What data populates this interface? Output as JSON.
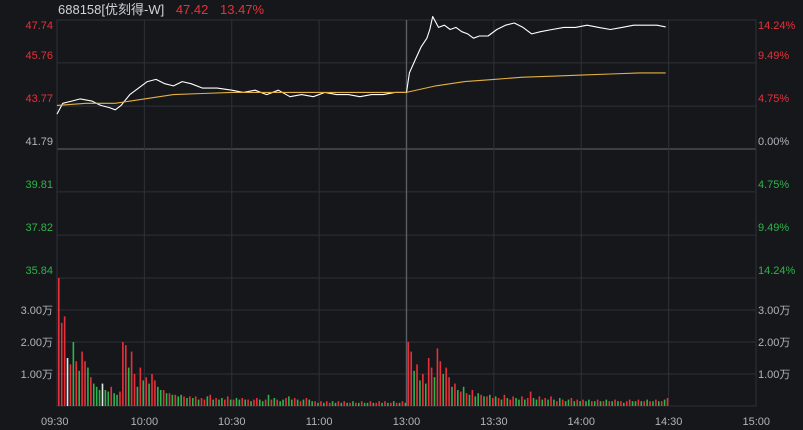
{
  "header": {
    "name": "688158[优刻得-W]",
    "price": "47.42",
    "change_pct": "13.47%"
  },
  "colors": {
    "background": "#16171b",
    "grid": "#2f3138",
    "up": "#e8303a",
    "down": "#2fb34a",
    "flat": "#e6e6e6",
    "price_line": "#ffffff",
    "avg_line": "#e3b142",
    "axis_text": "#b0b4bb"
  },
  "chart_data": {
    "type": "line",
    "price_axis": {
      "labels": [
        "47.74",
        "45.76",
        "43.77",
        "41.79",
        "39.81",
        "37.82",
        "35.84"
      ],
      "values": [
        47.74,
        45.76,
        43.77,
        41.79,
        39.81,
        37.82,
        35.84
      ],
      "prev_close": 41.79
    },
    "pct_axis": {
      "labels": [
        "14.24%",
        "9.49%",
        "4.75%",
        "0.00%",
        "4.75%",
        "9.49%",
        "14.24%"
      ]
    },
    "volume_axis": {
      "labels": [
        "3.00万",
        "2.00万",
        "1.00万"
      ],
      "values": [
        30000,
        20000,
        10000
      ],
      "max": 40000
    },
    "time_axis": {
      "labels": [
        "09:30",
        "10:00",
        "10:30",
        "11:00",
        "13:00",
        "13:30",
        "14:00",
        "14:30",
        "15:00"
      ],
      "minutes": [
        0,
        30,
        60,
        90,
        120,
        150,
        180,
        210,
        240
      ]
    },
    "total_minutes": 240,
    "series": [
      {
        "key": "price",
        "points": [
          [
            0,
            43.4
          ],
          [
            2,
            43.9
          ],
          [
            5,
            44.0
          ],
          [
            8,
            44.1
          ],
          [
            12,
            44.0
          ],
          [
            15,
            43.8
          ],
          [
            18,
            43.7
          ],
          [
            20,
            43.6
          ],
          [
            22,
            43.8
          ],
          [
            25,
            44.3
          ],
          [
            28,
            44.6
          ],
          [
            31,
            44.9
          ],
          [
            34,
            45.0
          ],
          [
            37,
            44.8
          ],
          [
            40,
            44.7
          ],
          [
            43,
            44.9
          ],
          [
            46,
            44.8
          ],
          [
            50,
            44.6
          ],
          [
            55,
            44.6
          ],
          [
            60,
            44.5
          ],
          [
            64,
            44.4
          ],
          [
            68,
            44.5
          ],
          [
            72,
            44.3
          ],
          [
            76,
            44.5
          ],
          [
            80,
            44.2
          ],
          [
            84,
            44.3
          ],
          [
            88,
            44.2
          ],
          [
            92,
            44.4
          ],
          [
            96,
            44.3
          ],
          [
            100,
            44.3
          ],
          [
            104,
            44.2
          ],
          [
            108,
            44.3
          ],
          [
            112,
            44.3
          ],
          [
            116,
            44.4
          ],
          [
            119,
            44.4
          ],
          [
            120,
            44.4
          ],
          [
            121,
            45.3
          ],
          [
            123,
            45.9
          ],
          [
            125,
            46.5
          ],
          [
            127,
            46.9
          ],
          [
            128,
            47.3
          ],
          [
            129,
            47.9
          ],
          [
            131,
            47.4
          ],
          [
            133,
            47.5
          ],
          [
            135,
            47.3
          ],
          [
            137,
            47.4
          ],
          [
            139,
            47.2
          ],
          [
            141,
            47.1
          ],
          [
            143,
            46.9
          ],
          [
            145,
            47.0
          ],
          [
            148,
            47.0
          ],
          [
            151,
            47.3
          ],
          [
            154,
            47.5
          ],
          [
            157,
            47.6
          ],
          [
            160,
            47.4
          ],
          [
            163,
            47.1
          ],
          [
            166,
            47.2
          ],
          [
            170,
            47.3
          ],
          [
            174,
            47.4
          ],
          [
            178,
            47.4
          ],
          [
            182,
            47.5
          ],
          [
            186,
            47.4
          ],
          [
            190,
            47.3
          ],
          [
            194,
            47.4
          ],
          [
            198,
            47.5
          ],
          [
            202,
            47.5
          ],
          [
            206,
            47.5
          ],
          [
            209,
            47.42
          ]
        ]
      },
      {
        "key": "average",
        "points": [
          [
            0,
            43.8
          ],
          [
            10,
            43.9
          ],
          [
            20,
            43.9
          ],
          [
            30,
            44.1
          ],
          [
            40,
            44.3
          ],
          [
            50,
            44.35
          ],
          [
            60,
            44.4
          ],
          [
            70,
            44.4
          ],
          [
            80,
            44.4
          ],
          [
            90,
            44.4
          ],
          [
            100,
            44.4
          ],
          [
            110,
            44.4
          ],
          [
            120,
            44.4
          ],
          [
            130,
            44.7
          ],
          [
            140,
            44.9
          ],
          [
            150,
            45.0
          ],
          [
            160,
            45.1
          ],
          [
            170,
            45.15
          ],
          [
            180,
            45.2
          ],
          [
            190,
            45.25
          ],
          [
            200,
            45.3
          ],
          [
            209,
            45.3
          ]
        ]
      }
    ],
    "volume": [
      [
        0,
        40000,
        "up"
      ],
      [
        1,
        26000,
        "up"
      ],
      [
        2,
        28000,
        "up"
      ],
      [
        3,
        15000,
        "flat"
      ],
      [
        4,
        13000,
        "up"
      ],
      [
        5,
        20000,
        "down"
      ],
      [
        6,
        14000,
        "up"
      ],
      [
        7,
        11000,
        "down"
      ],
      [
        8,
        17000,
        "up"
      ],
      [
        9,
        14000,
        "up"
      ],
      [
        10,
        12000,
        "down"
      ],
      [
        11,
        9000,
        "up"
      ],
      [
        12,
        7000,
        "down"
      ],
      [
        13,
        6000,
        "down"
      ],
      [
        14,
        5000,
        "down"
      ],
      [
        15,
        7000,
        "flat"
      ],
      [
        16,
        5000,
        "down"
      ],
      [
        17,
        4500,
        "down"
      ],
      [
        18,
        6000,
        "up"
      ],
      [
        19,
        4000,
        "down"
      ],
      [
        20,
        3500,
        "down"
      ],
      [
        21,
        4500,
        "up"
      ],
      [
        22,
        20000,
        "up"
      ],
      [
        23,
        19000,
        "up"
      ],
      [
        24,
        12000,
        "down"
      ],
      [
        25,
        17000,
        "up"
      ],
      [
        26,
        10000,
        "up"
      ],
      [
        27,
        6000,
        "down"
      ],
      [
        28,
        12000,
        "up"
      ],
      [
        29,
        8000,
        "down"
      ],
      [
        30,
        9000,
        "up"
      ],
      [
        31,
        7000,
        "down"
      ],
      [
        32,
        10000,
        "up"
      ],
      [
        33,
        8000,
        "up"
      ],
      [
        34,
        6000,
        "down"
      ],
      [
        35,
        5000,
        "down"
      ],
      [
        36,
        5000,
        "up"
      ],
      [
        37,
        4000,
        "down"
      ],
      [
        38,
        4000,
        "up"
      ],
      [
        39,
        3500,
        "down"
      ],
      [
        40,
        3500,
        "up"
      ],
      [
        41,
        3000,
        "down"
      ],
      [
        42,
        3500,
        "down"
      ],
      [
        43,
        3000,
        "up"
      ],
      [
        44,
        2500,
        "down"
      ],
      [
        45,
        3000,
        "up"
      ],
      [
        46,
        2500,
        "down"
      ],
      [
        47,
        3000,
        "up"
      ],
      [
        48,
        2000,
        "down"
      ],
      [
        49,
        2500,
        "up"
      ],
      [
        50,
        2000,
        "up"
      ],
      [
        51,
        3000,
        "down"
      ],
      [
        52,
        3500,
        "up"
      ],
      [
        53,
        2000,
        "down"
      ],
      [
        54,
        2500,
        "up"
      ],
      [
        55,
        2000,
        "down"
      ],
      [
        56,
        2500,
        "down"
      ],
      [
        57,
        2000,
        "up"
      ],
      [
        58,
        3000,
        "up"
      ],
      [
        59,
        2000,
        "down"
      ],
      [
        60,
        2000,
        "up"
      ],
      [
        61,
        2500,
        "down"
      ],
      [
        62,
        2000,
        "down"
      ],
      [
        63,
        2500,
        "up"
      ],
      [
        64,
        2000,
        "down"
      ],
      [
        65,
        2000,
        "up"
      ],
      [
        66,
        1500,
        "down"
      ],
      [
        67,
        2000,
        "up"
      ],
      [
        68,
        2500,
        "up"
      ],
      [
        69,
        2000,
        "down"
      ],
      [
        70,
        1500,
        "down"
      ],
      [
        71,
        2000,
        "up"
      ],
      [
        72,
        3500,
        "down"
      ],
      [
        73,
        2000,
        "up"
      ],
      [
        74,
        2500,
        "down"
      ],
      [
        75,
        2000,
        "up"
      ],
      [
        76,
        1500,
        "down"
      ],
      [
        77,
        2000,
        "down"
      ],
      [
        78,
        2500,
        "up"
      ],
      [
        79,
        3000,
        "down"
      ],
      [
        80,
        2000,
        "down"
      ],
      [
        81,
        2500,
        "up"
      ],
      [
        82,
        2000,
        "down"
      ],
      [
        83,
        1500,
        "up"
      ],
      [
        84,
        2000,
        "down"
      ],
      [
        85,
        2500,
        "up"
      ],
      [
        86,
        2000,
        "down"
      ],
      [
        87,
        1500,
        "down"
      ],
      [
        88,
        1500,
        "up"
      ],
      [
        89,
        1000,
        "down"
      ],
      [
        90,
        1500,
        "up"
      ],
      [
        91,
        1000,
        "down"
      ],
      [
        92,
        1500,
        "up"
      ],
      [
        93,
        1000,
        "up"
      ],
      [
        94,
        1500,
        "down"
      ],
      [
        95,
        1000,
        "down"
      ],
      [
        96,
        1500,
        "up"
      ],
      [
        97,
        1000,
        "down"
      ],
      [
        98,
        1500,
        "up"
      ],
      [
        99,
        1000,
        "down"
      ],
      [
        100,
        1000,
        "up"
      ],
      [
        101,
        1500,
        "down"
      ],
      [
        102,
        1000,
        "up"
      ],
      [
        103,
        1000,
        "down"
      ],
      [
        104,
        1500,
        "up"
      ],
      [
        105,
        1000,
        "down"
      ],
      [
        106,
        1000,
        "down"
      ],
      [
        107,
        1500,
        "up"
      ],
      [
        108,
        1000,
        "down"
      ],
      [
        109,
        1000,
        "up"
      ],
      [
        110,
        1500,
        "up"
      ],
      [
        111,
        1000,
        "down"
      ],
      [
        112,
        1500,
        "up"
      ],
      [
        113,
        1000,
        "down"
      ],
      [
        114,
        1000,
        "up"
      ],
      [
        115,
        1500,
        "down"
      ],
      [
        116,
        1000,
        "up"
      ],
      [
        117,
        1000,
        "down"
      ],
      [
        118,
        1500,
        "up"
      ],
      [
        119,
        1000,
        "down"
      ],
      [
        120,
        20000,
        "up"
      ],
      [
        121,
        17000,
        "up"
      ],
      [
        122,
        11000,
        "down"
      ],
      [
        123,
        13000,
        "up"
      ],
      [
        124,
        8000,
        "down"
      ],
      [
        125,
        10000,
        "up"
      ],
      [
        126,
        7000,
        "down"
      ],
      [
        127,
        15000,
        "up"
      ],
      [
        128,
        12000,
        "up"
      ],
      [
        129,
        9000,
        "down"
      ],
      [
        130,
        18000,
        "up"
      ],
      [
        131,
        14000,
        "up"
      ],
      [
        132,
        10000,
        "down"
      ],
      [
        133,
        12000,
        "up"
      ],
      [
        134,
        9000,
        "up"
      ],
      [
        135,
        6000,
        "down"
      ],
      [
        136,
        7000,
        "up"
      ],
      [
        137,
        5000,
        "down"
      ],
      [
        138,
        4500,
        "up"
      ],
      [
        139,
        6000,
        "down"
      ],
      [
        140,
        4000,
        "up"
      ],
      [
        141,
        3500,
        "down"
      ],
      [
        142,
        5000,
        "up"
      ],
      [
        143,
        3000,
        "down"
      ],
      [
        144,
        4000,
        "down"
      ],
      [
        145,
        3500,
        "up"
      ],
      [
        146,
        3000,
        "down"
      ],
      [
        147,
        3000,
        "up"
      ],
      [
        148,
        3500,
        "down"
      ],
      [
        149,
        2500,
        "up"
      ],
      [
        150,
        3000,
        "down"
      ],
      [
        151,
        2500,
        "up"
      ],
      [
        152,
        2000,
        "down"
      ],
      [
        153,
        3500,
        "up"
      ],
      [
        154,
        2500,
        "down"
      ],
      [
        155,
        2000,
        "up"
      ],
      [
        156,
        3000,
        "up"
      ],
      [
        157,
        2500,
        "down"
      ],
      [
        158,
        2000,
        "down"
      ],
      [
        159,
        3000,
        "up"
      ],
      [
        160,
        2000,
        "down"
      ],
      [
        161,
        2500,
        "up"
      ],
      [
        162,
        4500,
        "up"
      ],
      [
        163,
        2500,
        "down"
      ],
      [
        164,
        2000,
        "down"
      ],
      [
        165,
        3000,
        "up"
      ],
      [
        166,
        2000,
        "down"
      ],
      [
        167,
        2500,
        "up"
      ],
      [
        168,
        2000,
        "down"
      ],
      [
        169,
        3000,
        "up"
      ],
      [
        170,
        2000,
        "down"
      ],
      [
        171,
        1500,
        "up"
      ],
      [
        172,
        2500,
        "down"
      ],
      [
        173,
        2000,
        "up"
      ],
      [
        174,
        1500,
        "down"
      ],
      [
        175,
        2000,
        "down"
      ],
      [
        176,
        2500,
        "up"
      ],
      [
        177,
        1500,
        "down"
      ],
      [
        178,
        2000,
        "up"
      ],
      [
        179,
        1500,
        "down"
      ],
      [
        180,
        2000,
        "up"
      ],
      [
        181,
        1500,
        "down"
      ],
      [
        182,
        2000,
        "down"
      ],
      [
        183,
        1500,
        "up"
      ],
      [
        184,
        1500,
        "down"
      ],
      [
        185,
        2000,
        "up"
      ],
      [
        186,
        1500,
        "down"
      ],
      [
        187,
        1500,
        "up"
      ],
      [
        188,
        2000,
        "down"
      ],
      [
        189,
        1500,
        "up"
      ],
      [
        190,
        1500,
        "down"
      ],
      [
        191,
        2000,
        "up"
      ],
      [
        192,
        1500,
        "down"
      ],
      [
        193,
        1500,
        "up"
      ],
      [
        194,
        1000,
        "down"
      ],
      [
        195,
        1500,
        "up"
      ],
      [
        196,
        2000,
        "up"
      ],
      [
        197,
        1500,
        "down"
      ],
      [
        198,
        1500,
        "down"
      ],
      [
        199,
        2000,
        "up"
      ],
      [
        200,
        1500,
        "down"
      ],
      [
        201,
        1500,
        "up"
      ],
      [
        202,
        2000,
        "down"
      ],
      [
        203,
        1500,
        "up"
      ],
      [
        204,
        1500,
        "down"
      ],
      [
        205,
        2000,
        "up"
      ],
      [
        206,
        1500,
        "down"
      ],
      [
        207,
        1500,
        "up"
      ],
      [
        208,
        2000,
        "down"
      ],
      [
        209,
        2500,
        "up"
      ]
    ]
  }
}
